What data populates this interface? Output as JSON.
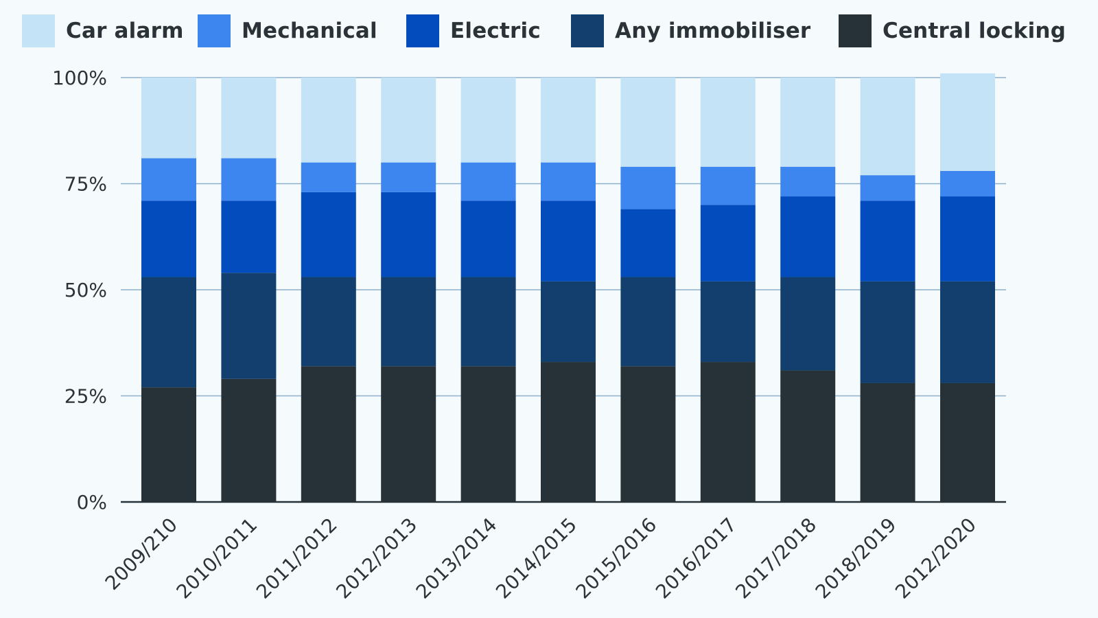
{
  "legend": {
    "items": [
      {
        "label": "Car alarm",
        "color": "#c5e3f6"
      },
      {
        "label": "Mechanical",
        "color": "#3d86f0"
      },
      {
        "label": "Electric",
        "color": "#034cbd"
      },
      {
        "label": "Any immobiliser",
        "color": "#123f6e"
      },
      {
        "label": "Central locking",
        "color": "#263238"
      }
    ]
  },
  "chart_data": {
    "type": "bar",
    "stacked": true,
    "percent_axis": true,
    "categories": [
      "2009/210",
      "2010/2011",
      "2011/2012",
      "2012/2013",
      "2013/2014",
      "2014/2015",
      "2015/2016",
      "2016/2017",
      "2017/2018",
      "2018/2019",
      "2012/2020"
    ],
    "series": [
      {
        "name": "Central locking",
        "color": "#263238",
        "values": [
          27,
          29,
          32,
          32,
          32,
          33,
          32,
          33,
          31,
          28,
          28
        ]
      },
      {
        "name": "Any immobiliser",
        "color": "#123f6e",
        "values": [
          26,
          25,
          21,
          21,
          21,
          19,
          21,
          19,
          22,
          24,
          24
        ]
      },
      {
        "name": "Electric",
        "color": "#034cbd",
        "values": [
          18,
          17,
          20,
          20,
          18,
          19,
          16,
          18,
          19,
          19,
          20
        ]
      },
      {
        "name": "Mechanical",
        "color": "#3d86f0",
        "values": [
          10,
          10,
          7,
          7,
          9,
          9,
          10,
          9,
          7,
          6,
          6
        ]
      },
      {
        "name": "Car alarm",
        "color": "#c5e3f6",
        "values": [
          19,
          19,
          20,
          20,
          20,
          20,
          21,
          21,
          21,
          23,
          23
        ]
      }
    ],
    "yticks": [
      "0%",
      "25%",
      "50%",
      "75%",
      "100%"
    ],
    "ylim": [
      0,
      100
    ],
    "grid": true,
    "legend_position": "top"
  }
}
